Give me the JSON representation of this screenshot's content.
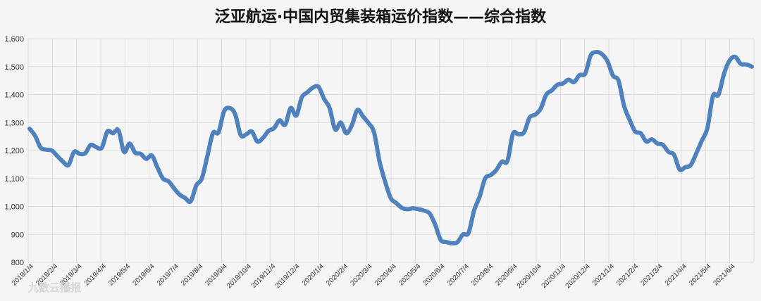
{
  "chart_data": {
    "type": "line",
    "title": "泛亚航运·中国内贸集装箱运价指数——综合指数",
    "xlabel": "",
    "ylabel": "",
    "ylim": [
      800,
      1600
    ],
    "yticks": [
      800,
      900,
      1000,
      1100,
      1200,
      1300,
      1400,
      1500,
      1600
    ],
    "grid": true,
    "legend": "none",
    "line_color": "#4f81bd",
    "x_tick_labels": [
      "2019/1/4",
      "2019/2/4",
      "2019/3/4",
      "2019/4/4",
      "2019/5/4",
      "2019/6/4",
      "2019/7/4",
      "2019/8/4",
      "2019/9/4",
      "2019/10/4",
      "2019/11/4",
      "2019/12/4",
      "2020/1/4",
      "2020/2/4",
      "2020/3/4",
      "2020/4/4",
      "2020/5/4",
      "2020/6/4",
      "2020/7/4",
      "2020/8/4",
      "2020/9/4",
      "2020/10/4",
      "2020/11/4",
      "2020/12/4",
      "2021/1/4",
      "2021/2/4",
      "2021/3/4",
      "2021/4/4",
      "2021/5/4",
      "2021/6/4"
    ],
    "series": [
      {
        "values": [
          1278,
          1252,
          1210,
          1203,
          1200,
          1180,
          1160,
          1148,
          1195,
          1188,
          1190,
          1220,
          1212,
          1210,
          1268,
          1262,
          1272,
          1195,
          1225,
          1192,
          1188,
          1170,
          1182,
          1140,
          1100,
          1090,
          1065,
          1042,
          1030,
          1018,
          1075,
          1100,
          1180,
          1262,
          1265,
          1340,
          1352,
          1330,
          1255,
          1258,
          1268,
          1232,
          1245,
          1270,
          1280,
          1308,
          1292,
          1352,
          1325,
          1390,
          1408,
          1425,
          1428,
          1385,
          1352,
          1275,
          1300,
          1262,
          1290,
          1345,
          1322,
          1298,
          1265,
          1160,
          1088,
          1030,
          1012,
          995,
          990,
          993,
          990,
          985,
          975,
          935,
          880,
          873,
          868,
          872,
          900,
          905,
          985,
          1035,
          1100,
          1112,
          1130,
          1160,
          1162,
          1260,
          1258,
          1265,
          1318,
          1328,
          1350,
          1400,
          1415,
          1435,
          1440,
          1453,
          1445,
          1470,
          1475,
          1540,
          1552,
          1545,
          1520,
          1468,
          1450,
          1360,
          1310,
          1268,
          1262,
          1232,
          1240,
          1225,
          1220,
          1195,
          1185,
          1132,
          1140,
          1148,
          1190,
          1235,
          1280,
          1395,
          1400,
          1475,
          1522,
          1535,
          1510,
          1508,
          1500
        ]
      }
    ],
    "watermark": "九数云播报"
  }
}
